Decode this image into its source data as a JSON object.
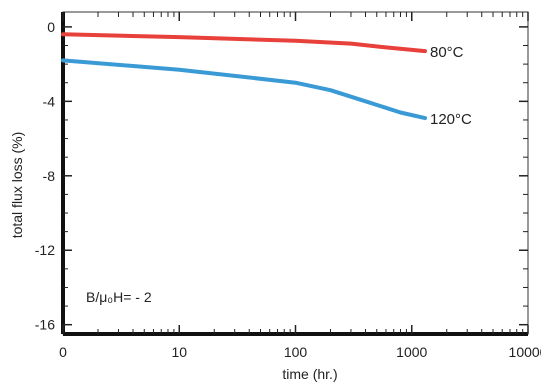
{
  "chart_data": {
    "type": "line",
    "xlabel": "time (hr.)",
    "ylabel": "total flux loss (%)",
    "x_scale": "log",
    "x_ticks": [
      {
        "value": 1,
        "label": "0"
      },
      {
        "value": 10,
        "label": "10"
      },
      {
        "value": 100,
        "label": "100"
      },
      {
        "value": 1000,
        "label": "1000"
      },
      {
        "value": 10000,
        "label": "10000"
      }
    ],
    "xlim": [
      1,
      10000
    ],
    "ylim": [
      -16.5,
      0.8
    ],
    "y_ticks": [
      0,
      -4,
      -8,
      -12,
      -16
    ],
    "y_tick_labels": [
      "0",
      "-4",
      "-8",
      "-12",
      "-16"
    ],
    "grid": false,
    "series": [
      {
        "name": "80°C",
        "color": "#e8403a",
        "x": [
          1,
          10,
          100,
          300,
          600,
          1300
        ],
        "y": [
          -0.4,
          -0.55,
          -0.75,
          -0.9,
          -1.1,
          -1.3
        ]
      },
      {
        "name": "120°C",
        "color": "#3a9ad6",
        "x": [
          1,
          10,
          100,
          200,
          400,
          800,
          1300
        ],
        "y": [
          -1.8,
          -2.3,
          -3.0,
          -3.4,
          -4.0,
          -4.6,
          -4.9
        ]
      }
    ],
    "annotation": "B/μ₀H= - 2"
  }
}
